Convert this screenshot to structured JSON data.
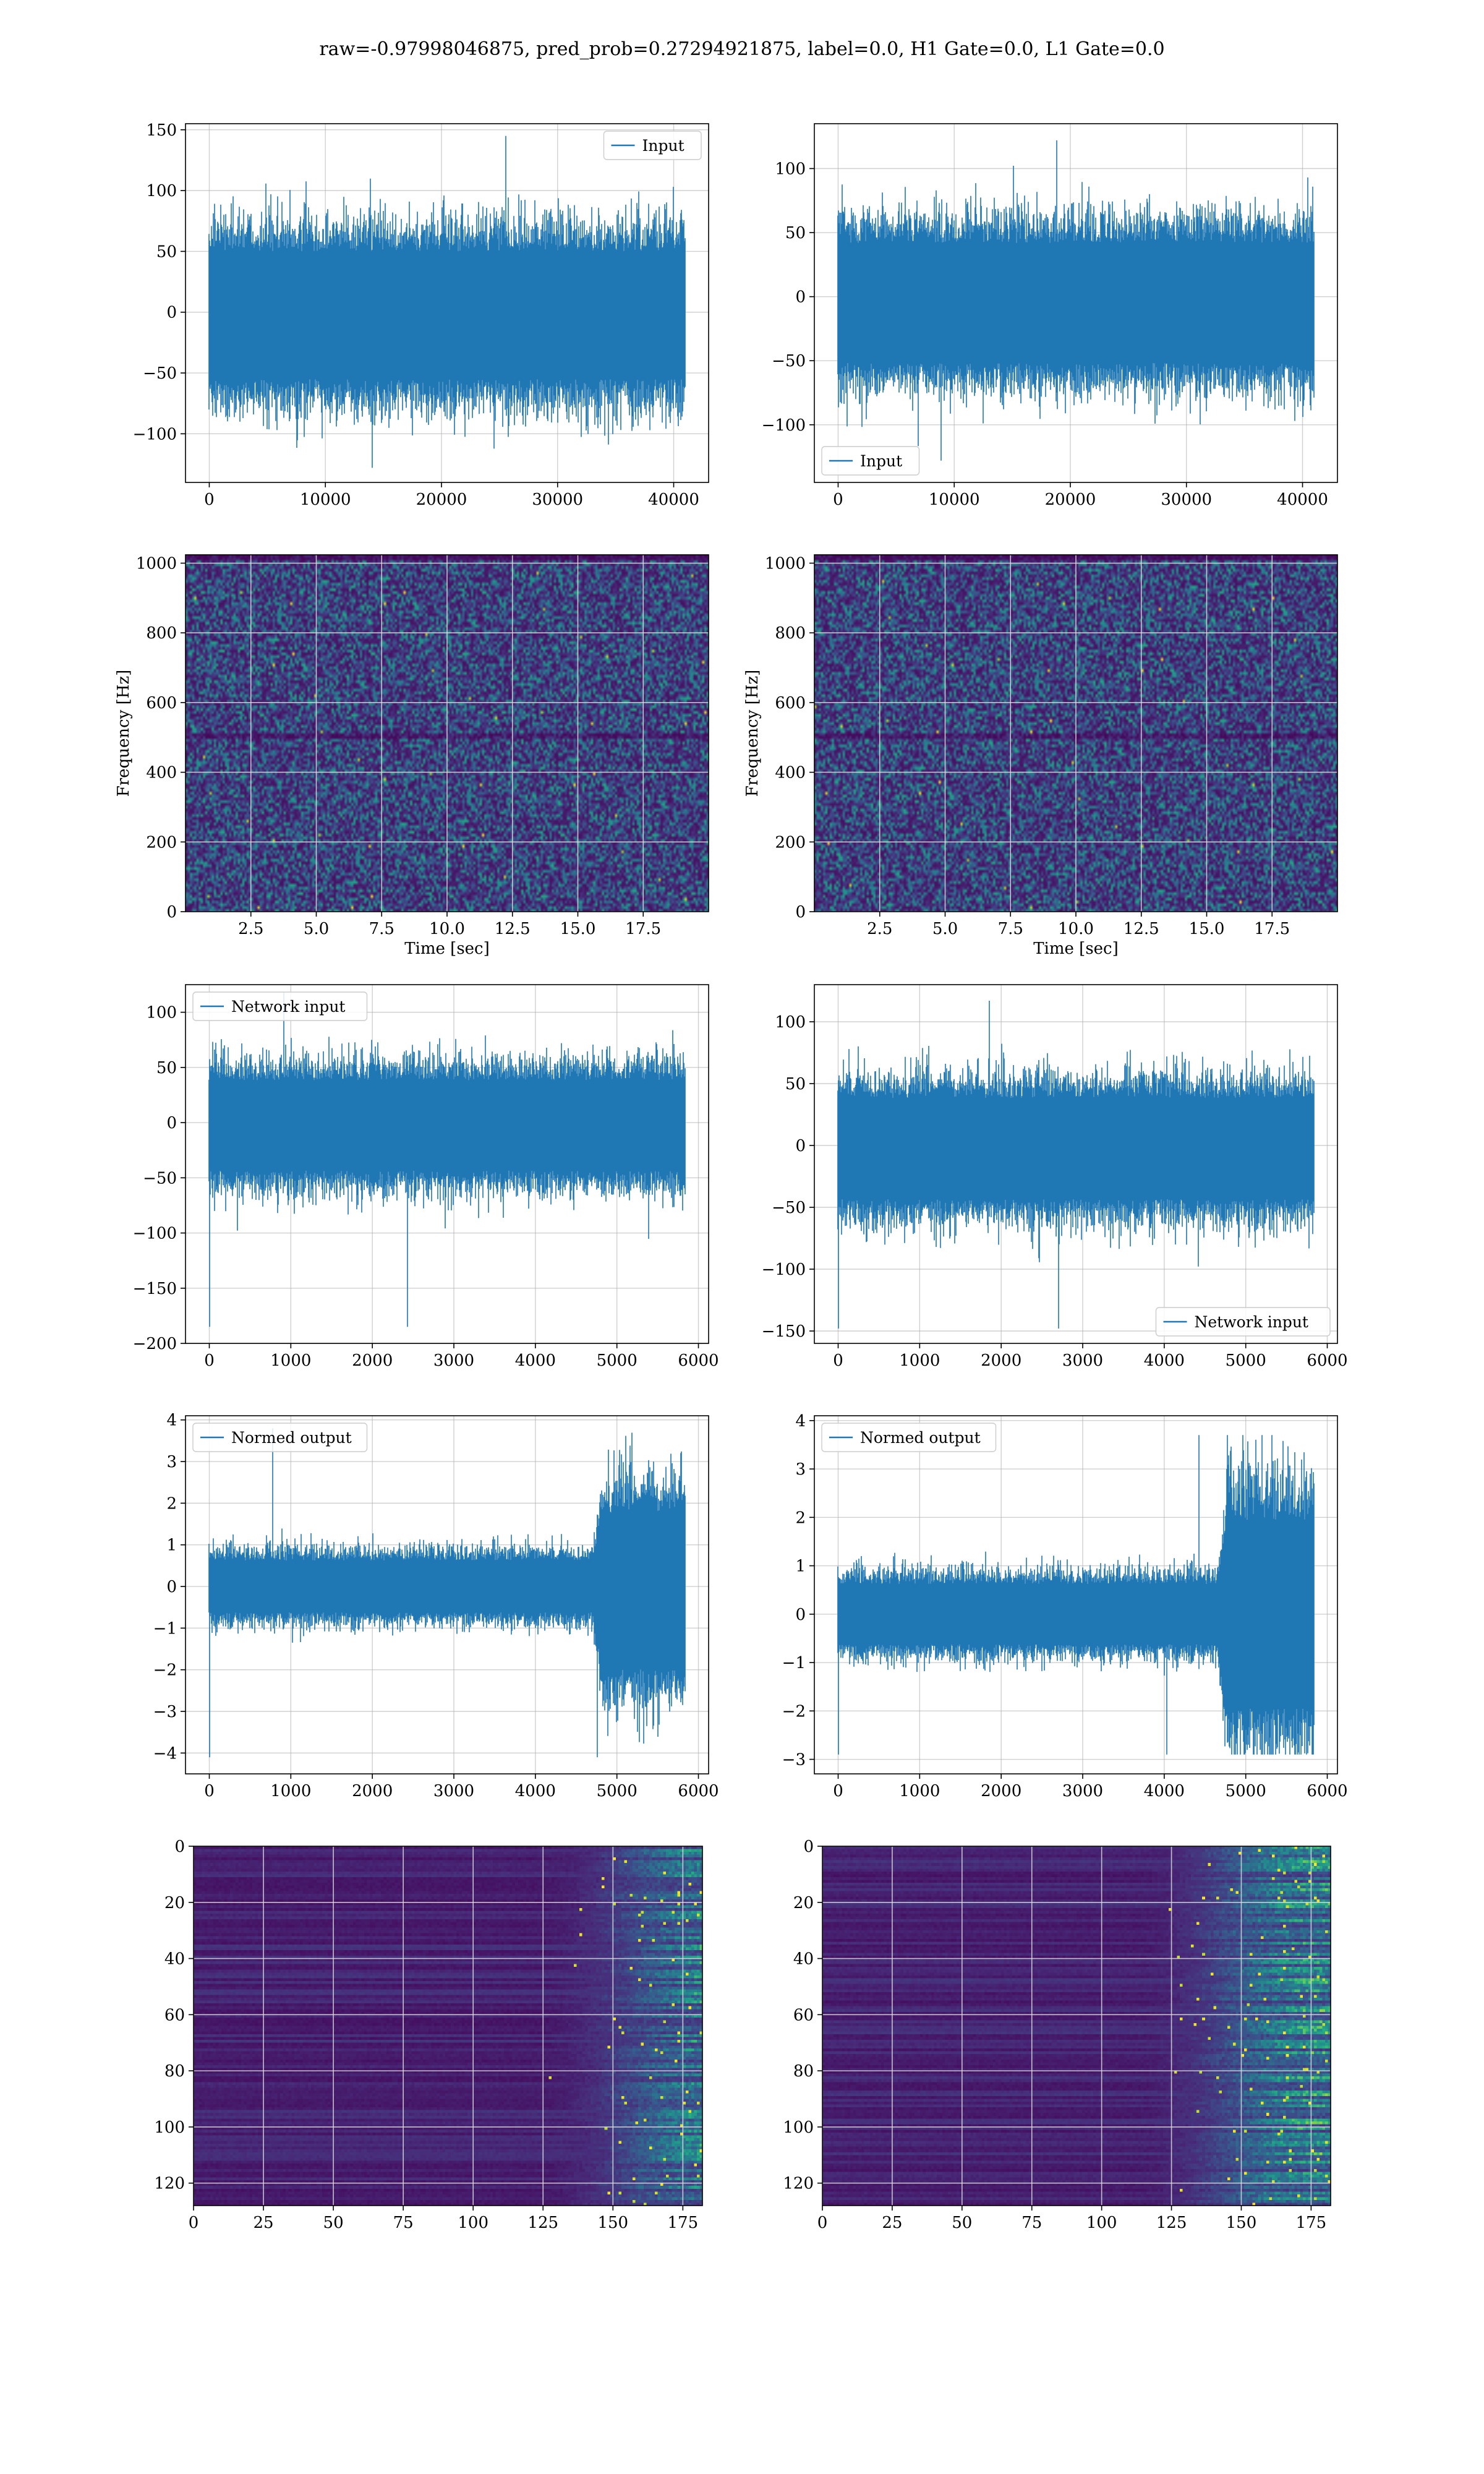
{
  "suptitle": "raw=-0.97998046875, pred_prob=0.27294921875, label=0.0, H1 Gate=0.0, L1 Gate=0.0",
  "colors": {
    "line": "#1f77b4",
    "grid": "#b0b0b0",
    "axes": "#000000",
    "viridis": [
      "#440154",
      "#472c7a",
      "#3b518b",
      "#2c718e",
      "#21908d",
      "#27ad81",
      "#5cc863",
      "#aadc32",
      "#fde725"
    ]
  },
  "chart_data": [
    {
      "id": "h1-input",
      "type": "line",
      "legend": {
        "label": "Input",
        "loc": "upper right"
      },
      "xlim": [
        -2048,
        43008
      ],
      "ylim": [
        -140,
        155
      ],
      "xticks": [
        0,
        10000,
        20000,
        30000,
        40000
      ],
      "yticks": [
        -100,
        -50,
        0,
        50,
        100,
        150
      ],
      "grid": true,
      "series": [
        {
          "name": "Input",
          "n": 40960,
          "x_range": [
            0,
            40960
          ],
          "envelope_typical": [
            -70,
            65
          ],
          "peaks_max": 145,
          "peaks_min": -128
        }
      ]
    },
    {
      "id": "l1-input",
      "type": "line",
      "legend": {
        "label": "Input",
        "loc": "lower left"
      },
      "xlim": [
        -2048,
        43008
      ],
      "ylim": [
        -145,
        135
      ],
      "xticks": [
        0,
        10000,
        20000,
        30000,
        40000
      ],
      "yticks": [
        -100,
        -50,
        0,
        50,
        100
      ],
      "grid": true,
      "series": [
        {
          "name": "Input",
          "n": 40960,
          "x_range": [
            0,
            40960
          ],
          "envelope_typical": [
            -65,
            55
          ],
          "peaks_max": 122,
          "peaks_min": -128
        }
      ]
    },
    {
      "id": "h1-spectrogram",
      "type": "heatmap",
      "xlabel": "Time [sec]",
      "ylabel": "Frequency [Hz]",
      "xlim": [
        0,
        20
      ],
      "ylim": [
        0,
        1024
      ],
      "xticks": [
        2.5,
        5.0,
        7.5,
        10.0,
        12.5,
        15.0,
        17.5
      ],
      "yticks": [
        0,
        200,
        400,
        600,
        800,
        1000
      ],
      "colormap": "viridis",
      "grid": true
    },
    {
      "id": "l1-spectrogram",
      "type": "heatmap",
      "xlabel": "Time [sec]",
      "ylabel": "Frequency [Hz]",
      "xlim": [
        0,
        20
      ],
      "ylim": [
        0,
        1024
      ],
      "xticks": [
        2.5,
        5.0,
        7.5,
        10.0,
        12.5,
        15.0,
        17.5
      ],
      "yticks": [
        0,
        200,
        400,
        600,
        800,
        1000
      ],
      "colormap": "viridis",
      "grid": true
    },
    {
      "id": "h1-network-input",
      "type": "line",
      "legend": {
        "label": "Network input",
        "loc": "upper left"
      },
      "xlim": [
        -292,
        6125
      ],
      "ylim": [
        -200,
        125
      ],
      "xticks": [
        0,
        1000,
        2000,
        3000,
        4000,
        5000,
        6000
      ],
      "yticks": [
        -200,
        -150,
        -100,
        -50,
        0,
        50,
        100
      ],
      "grid": true,
      "series": [
        {
          "name": "Network input",
          "n": 5833,
          "x_range": [
            0,
            5833
          ],
          "envelope_typical": [
            -55,
            50
          ],
          "peaks_max": 118,
          "peaks_min": -185
        }
      ]
    },
    {
      "id": "l1-network-input",
      "type": "line",
      "legend": {
        "label": "Network input",
        "loc": "lower right"
      },
      "xlim": [
        -292,
        6125
      ],
      "ylim": [
        -160,
        130
      ],
      "xticks": [
        0,
        1000,
        2000,
        3000,
        4000,
        5000,
        6000
      ],
      "yticks": [
        -150,
        -100,
        -50,
        0,
        50,
        100
      ],
      "grid": true,
      "series": [
        {
          "name": "Network input",
          "n": 5833,
          "x_range": [
            0,
            5833
          ],
          "envelope_typical": [
            -55,
            50
          ],
          "peaks_max": 117,
          "peaks_min": -148
        }
      ]
    },
    {
      "id": "h1-normed-output",
      "type": "line",
      "legend": {
        "label": "Normed output",
        "loc": "upper left"
      },
      "xlim": [
        -292,
        6125
      ],
      "ylim": [
        -4.5,
        4.1
      ],
      "xticks": [
        0,
        1000,
        2000,
        3000,
        4000,
        5000,
        6000
      ],
      "yticks": [
        -4,
        -3,
        -2,
        -1,
        0,
        1,
        2,
        3,
        4
      ],
      "grid": true,
      "series": [
        {
          "name": "Normed output",
          "n": 5833,
          "x_range": [
            0,
            5833
          ],
          "envelope_typical": [
            -0.8,
            0.8
          ],
          "burst_start_x": 4700,
          "burst_envelope": [
            -2.5,
            2.3
          ],
          "peaks_max": 3.8,
          "peaks_min": -4.1
        }
      ]
    },
    {
      "id": "l1-normed-output",
      "type": "line",
      "legend": {
        "label": "Normed output",
        "loc": "upper left"
      },
      "xlim": [
        -292,
        6125
      ],
      "ylim": [
        -3.3,
        4.1
      ],
      "xticks": [
        0,
        1000,
        2000,
        3000,
        4000,
        5000,
        6000
      ],
      "yticks": [
        -3,
        -2,
        -1,
        0,
        1,
        2,
        3,
        4
      ],
      "grid": true,
      "series": [
        {
          "name": "Normed output",
          "n": 5833,
          "x_range": [
            0,
            5833
          ],
          "envelope_typical": [
            -0.8,
            0.8
          ],
          "burst_start_x": 4650,
          "burst_envelope": [
            -2.5,
            2.5
          ],
          "peaks_max": 3.7,
          "peaks_min": -2.9
        }
      ]
    },
    {
      "id": "h1-features",
      "type": "heatmap",
      "xlim": [
        0,
        182
      ],
      "ylim": [
        128,
        0
      ],
      "xticks": [
        0,
        25,
        50,
        75,
        100,
        125,
        150,
        175
      ],
      "yticks": [
        0,
        20,
        40,
        60,
        80,
        100,
        120
      ],
      "colormap": "viridis",
      "grid": true,
      "activity_start_col": 140
    },
    {
      "id": "l1-features",
      "type": "heatmap",
      "xlim": [
        0,
        182
      ],
      "ylim": [
        128,
        0
      ],
      "xticks": [
        0,
        25,
        50,
        75,
        100,
        125,
        150,
        175
      ],
      "yticks": [
        0,
        20,
        40,
        60,
        80,
        100,
        120
      ],
      "colormap": "viridis",
      "grid": true,
      "activity_start_col": 128
    }
  ]
}
